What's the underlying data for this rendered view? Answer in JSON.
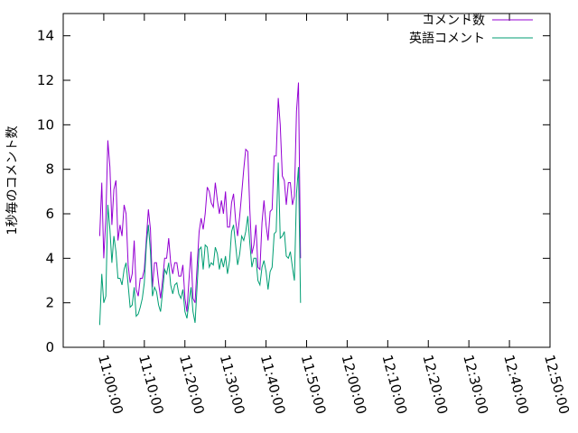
{
  "chart_data": {
    "type": "line",
    "ylabel": "1秒毎のコメント数",
    "xlabel": "",
    "ylim": [
      0,
      15
    ],
    "yticks": [
      0,
      2,
      4,
      6,
      8,
      10,
      12,
      14
    ],
    "xlim": [
      "10:50:00",
      "12:50:00"
    ],
    "xticks": [
      "11:00:00",
      "11:10:00",
      "11:20:00",
      "11:30:00",
      "11:40:00",
      "11:50:00",
      "12:00:00",
      "12:10:00",
      "12:20:00",
      "12:30:00",
      "12:40:00",
      "12:50:00"
    ],
    "grid": false,
    "legend_position": "top-right",
    "x_start": "10:59:00",
    "x_step_seconds": 30,
    "series": [
      {
        "name": "コメント数",
        "color": "#9400d3",
        "values": [
          5.0,
          7.4,
          4.0,
          5.8,
          9.3,
          8.1,
          5.5,
          7.1,
          7.5,
          4.8,
          5.5,
          5.0,
          6.4,
          6.0,
          3.7,
          2.9,
          3.3,
          4.8,
          2.6,
          2.3,
          3.1,
          3.1,
          3.5,
          4.9,
          6.2,
          5.3,
          2.7,
          3.8,
          3.8,
          2.9,
          2.2,
          3.0,
          4.0,
          4.0,
          4.9,
          3.8,
          3.3,
          3.8,
          3.8,
          3.2,
          3.2,
          3.7,
          2.2,
          1.6,
          3.0,
          4.3,
          2.2,
          2.0,
          3.6,
          5.2,
          5.8,
          5.3,
          6.0,
          7.2,
          7.0,
          6.5,
          6.3,
          7.4,
          6.6,
          6.0,
          6.6,
          6.0,
          7.0,
          5.4,
          5.4,
          6.5,
          6.9,
          5.7,
          5.0,
          5.9,
          6.9,
          8.0,
          8.9,
          8.8,
          6.2,
          4.2,
          4.6,
          5.5,
          3.6,
          3.5,
          5.6,
          6.6,
          5.5,
          4.8,
          6.1,
          6.2,
          8.6,
          8.6,
          11.2,
          10.0,
          7.7,
          7.5,
          6.4,
          7.4,
          7.4,
          6.4,
          6.8,
          10.6,
          11.9,
          4.0
        ]
      },
      {
        "name": "英語コメント",
        "color": "#009e73",
        "values": [
          1.0,
          3.3,
          2.0,
          2.3,
          6.4,
          5.3,
          3.8,
          5.0,
          4.3,
          3.1,
          3.1,
          2.8,
          3.5,
          3.8,
          2.8,
          1.8,
          1.9,
          2.7,
          1.4,
          1.5,
          1.8,
          2.2,
          2.9,
          4.6,
          5.5,
          4.3,
          2.3,
          2.7,
          2.5,
          1.9,
          1.6,
          2.5,
          3.5,
          3.3,
          3.8,
          2.8,
          2.4,
          2.8,
          2.9,
          2.4,
          2.2,
          2.6,
          1.6,
          1.3,
          2.0,
          2.7,
          1.6,
          1.1,
          2.7,
          4.4,
          4.5,
          3.5,
          4.6,
          4.5,
          3.6,
          3.8,
          3.7,
          4.5,
          4.2,
          3.5,
          4.0,
          3.6,
          4.1,
          3.3,
          3.9,
          5.2,
          5.5,
          4.6,
          3.7,
          4.2,
          5.0,
          4.8,
          5.2,
          5.9,
          4.7,
          3.6,
          4.0,
          4.0,
          3.0,
          2.8,
          3.6,
          3.9,
          3.4,
          2.6,
          3.4,
          3.6,
          5.1,
          5.2,
          8.3,
          4.9,
          5.0,
          5.2,
          4.1,
          4.0,
          4.3,
          3.6,
          3.0,
          6.9,
          8.1,
          2.0
        ]
      }
    ]
  }
}
